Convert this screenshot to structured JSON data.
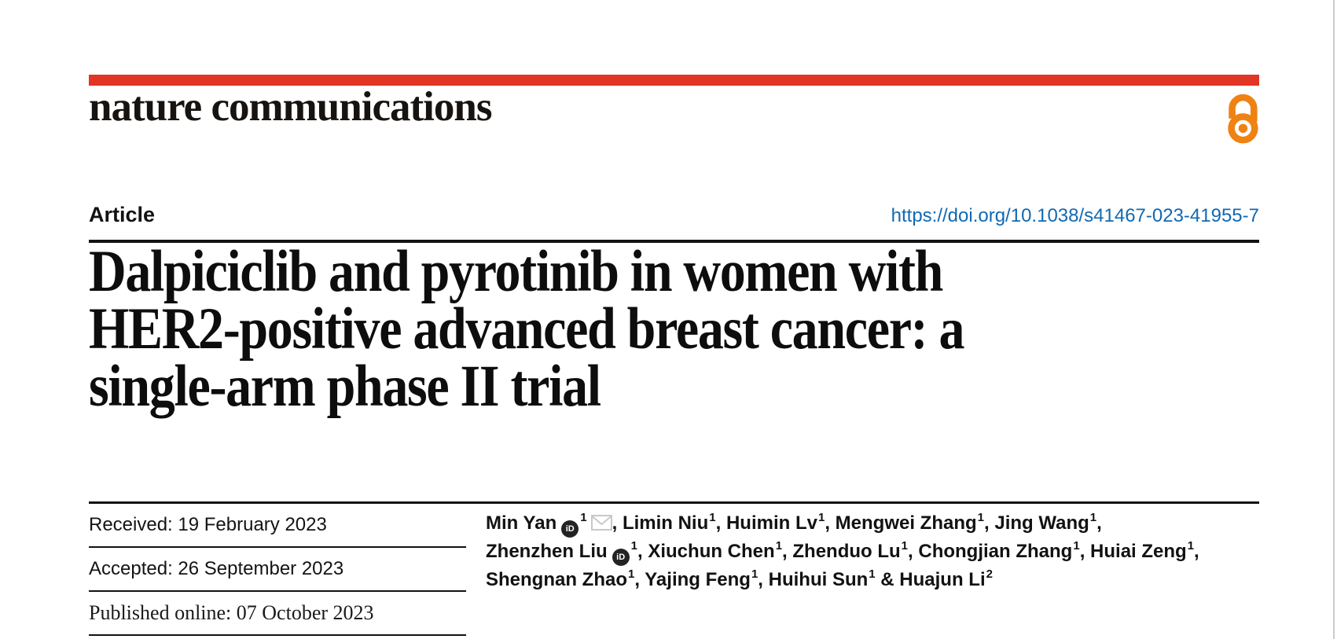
{
  "colors": {
    "red_bar": "#e33524",
    "open_access_orange": "#ef8212",
    "doi_blue": "#1169b2",
    "envelope_gray": "#c8c8c8"
  },
  "masthead": {
    "logo_text": "nature communications",
    "open_access_icon": "open-lock-icon"
  },
  "article_bar": {
    "label": "Article",
    "doi": "https://doi.org/10.1038/s41467-023-41955-7"
  },
  "title": {
    "lines": [
      "Dalpiciclib and pyrotinib in women with",
      "HER2-positive advanced breast cancer: a",
      "single-arm phase II trial"
    ]
  },
  "history": {
    "rows": [
      {
        "text": "Received: 19 February 2023",
        "font": "sans"
      },
      {
        "text": "Accepted: 26 September 2023",
        "font": "sans"
      },
      {
        "text": "Published online: 07 October 2023",
        "font": "serif"
      }
    ]
  },
  "authors": {
    "orcid_icon_text": "iD",
    "separator": ", ",
    "ampersand": " & ",
    "list": [
      {
        "name": "Min Yan",
        "sup": "1",
        "orcid": true,
        "email": true
      },
      {
        "name": "Limin Niu",
        "sup": "1"
      },
      {
        "name": "Huimin Lv",
        "sup": "1"
      },
      {
        "name": "Mengwei Zhang",
        "sup": "1"
      },
      {
        "name": "Jing Wang",
        "sup": "1",
        "br": true
      },
      {
        "name": "Zhenzhen Liu",
        "sup": "1",
        "orcid": true
      },
      {
        "name": "Xiuchun Chen",
        "sup": "1"
      },
      {
        "name": "Zhenduo Lu",
        "sup": "1"
      },
      {
        "name": "Chongjian Zhang",
        "sup": "1"
      },
      {
        "name": "Huiai Zeng",
        "sup": "1",
        "br": true
      },
      {
        "name": "Shengnan Zhao",
        "sup": "1"
      },
      {
        "name": "Yajing Feng",
        "sup": "1"
      },
      {
        "name": "Huihui Sun",
        "sup": "1",
        "amp_after": true
      },
      {
        "name": "Huajun Li",
        "sup": "2",
        "last": true
      }
    ]
  }
}
